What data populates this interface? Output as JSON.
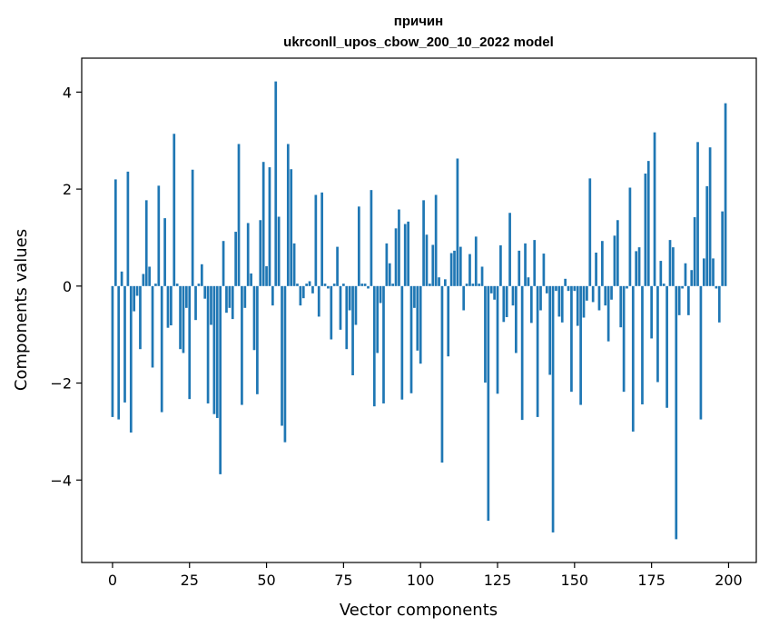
{
  "chart_data": {
    "type": "bar",
    "title_line1": "причин",
    "title_line2": "ukrconll_upos_cbow_200_10_2022 model",
    "xlabel": "Vector components",
    "ylabel": "Components values",
    "xlim": [
      -10,
      209
    ],
    "ylim": [
      -5.7,
      4.7
    ],
    "xticks": [
      0,
      25,
      50,
      75,
      100,
      125,
      150,
      175,
      200
    ],
    "xtick_labels": [
      "0",
      "25",
      "50",
      "75",
      "100",
      "125",
      "150",
      "175",
      "200"
    ],
    "yticks": [
      -4,
      -2,
      0,
      2,
      4
    ],
    "ytick_labels": [
      "−4",
      "−2",
      "0",
      "2",
      "4"
    ],
    "grid": false,
    "bar_color": "#1f77b4",
    "values": [
      -2.7,
      2.2,
      -2.75,
      0.3,
      -2.4,
      2.36,
      -3.02,
      -0.52,
      -0.2,
      -1.3,
      0.25,
      1.77,
      0.4,
      -1.68,
      0.05,
      2.07,
      -2.6,
      1.4,
      -0.86,
      -0.81,
      3.14,
      0.05,
      -1.3,
      -1.38,
      -0.45,
      -2.33,
      2.4,
      -0.7,
      0.05,
      0.45,
      -0.26,
      -2.42,
      -0.8,
      -2.64,
      -2.72,
      -3.88,
      0.93,
      -0.55,
      -0.45,
      -0.68,
      1.12,
      2.93,
      -2.45,
      -0.45,
      1.3,
      0.26,
      -1.32,
      -2.23,
      1.36,
      2.56,
      0.41,
      2.45,
      -0.4,
      4.22,
      1.43,
      -2.88,
      -3.22,
      2.93,
      2.41,
      0.88,
      0.05,
      -0.4,
      -0.25,
      0.05,
      0.1,
      -0.15,
      1.88,
      -0.63,
      1.93,
      0.05,
      -0.05,
      -1.1,
      0.05,
      0.81,
      -0.9,
      0.05,
      -1.3,
      -0.5,
      -1.84,
      -0.8,
      1.64,
      0.05,
      0.05,
      -0.05,
      1.98,
      -2.48,
      -1.38,
      -0.35,
      -2.42,
      0.88,
      0.47,
      0.05,
      1.19,
      1.58,
      -2.34,
      1.28,
      1.33,
      -2.21,
      -0.45,
      -1.33,
      -1.6,
      1.77,
      1.06,
      0.05,
      0.85,
      1.88,
      0.18,
      -3.64,
      0.14,
      -1.45,
      0.68,
      0.73,
      2.63,
      0.81,
      -0.5,
      0.05,
      0.66,
      0.05,
      1.02,
      0.05,
      0.4,
      -1.99,
      -4.84,
      -0.15,
      -0.28,
      -2.22,
      0.84,
      -0.74,
      -0.64,
      1.51,
      -0.4,
      -1.38,
      0.73,
      -2.76,
      0.88,
      0.18,
      -0.76,
      0.95,
      -2.7,
      -0.5,
      0.67,
      -0.15,
      -1.83,
      -5.08,
      -0.1,
      -0.63,
      -0.75,
      0.15,
      -0.1,
      -2.18,
      -0.1,
      -0.82,
      -2.45,
      -0.65,
      -0.3,
      2.22,
      -0.33,
      0.69,
      -0.5,
      0.93,
      -0.4,
      -1.14,
      -0.28,
      1.04,
      1.36,
      -0.85,
      -2.18,
      -0.05,
      2.03,
      -3.0,
      0.72,
      0.8,
      -2.44,
      2.32,
      2.58,
      -1.08,
      3.17,
      -1.98,
      0.52,
      0.05,
      -2.51,
      0.95,
      0.8,
      -5.22,
      -0.6,
      -0.05,
      0.47,
      -0.6,
      0.33,
      1.42,
      2.97,
      -2.75,
      0.57,
      2.06,
      2.86,
      0.57,
      -0.05,
      -0.75,
      1.54,
      3.77
    ]
  }
}
